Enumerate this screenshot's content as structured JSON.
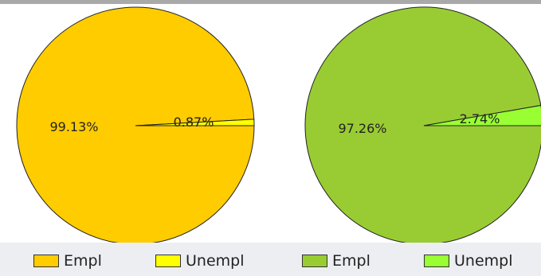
{
  "chart_data": [
    {
      "type": "pie",
      "slices": [
        {
          "label": "Empl",
          "value": 99.13,
          "value_label": "99.13%",
          "color": "#ffcc00"
        },
        {
          "label": "Unempl",
          "value": 0.87,
          "value_label": "0.87%",
          "color": "#ffff00"
        }
      ]
    },
    {
      "type": "pie",
      "slices": [
        {
          "label": "Empl",
          "value": 97.26,
          "value_label": "97.26%",
          "color": "#99cc33"
        },
        {
          "label": "Unempl",
          "value": 2.74,
          "value_label": "2.74%",
          "color": "#99ff33"
        }
      ]
    }
  ],
  "legend": [
    {
      "label": "Empl",
      "color": "#ffcc00"
    },
    {
      "label": "Unempl",
      "color": "#ffff00"
    },
    {
      "label": "Empl",
      "color": "#99cc33"
    },
    {
      "label": "Unempl",
      "color": "#99ff33"
    }
  ]
}
